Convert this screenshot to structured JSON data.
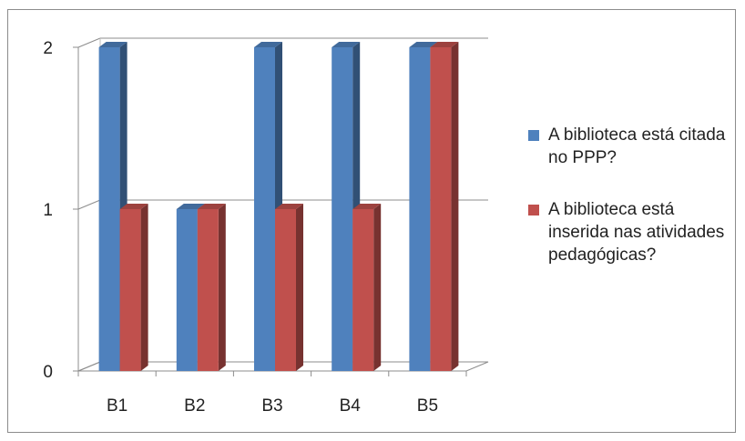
{
  "chart_data": {
    "type": "bar",
    "categories": [
      "B1",
      "B2",
      "B3",
      "B4",
      "B5"
    ],
    "series": [
      {
        "name": "A biblioteca está citada no PPP?",
        "values": [
          2,
          1,
          2,
          2,
          2
        ],
        "color": "#4f81bd"
      },
      {
        "name": "A biblioteca está inserida nas atividades pedagógicas?",
        "values": [
          1,
          1,
          1,
          1,
          2
        ],
        "color": "#c0504d"
      }
    ],
    "title": "",
    "xlabel": "",
    "ylabel": "",
    "ylim": [
      0,
      2
    ],
    "yticks": [
      "0",
      "1",
      "2"
    ],
    "grid": true,
    "legend_position": "right",
    "style_3d": true
  }
}
